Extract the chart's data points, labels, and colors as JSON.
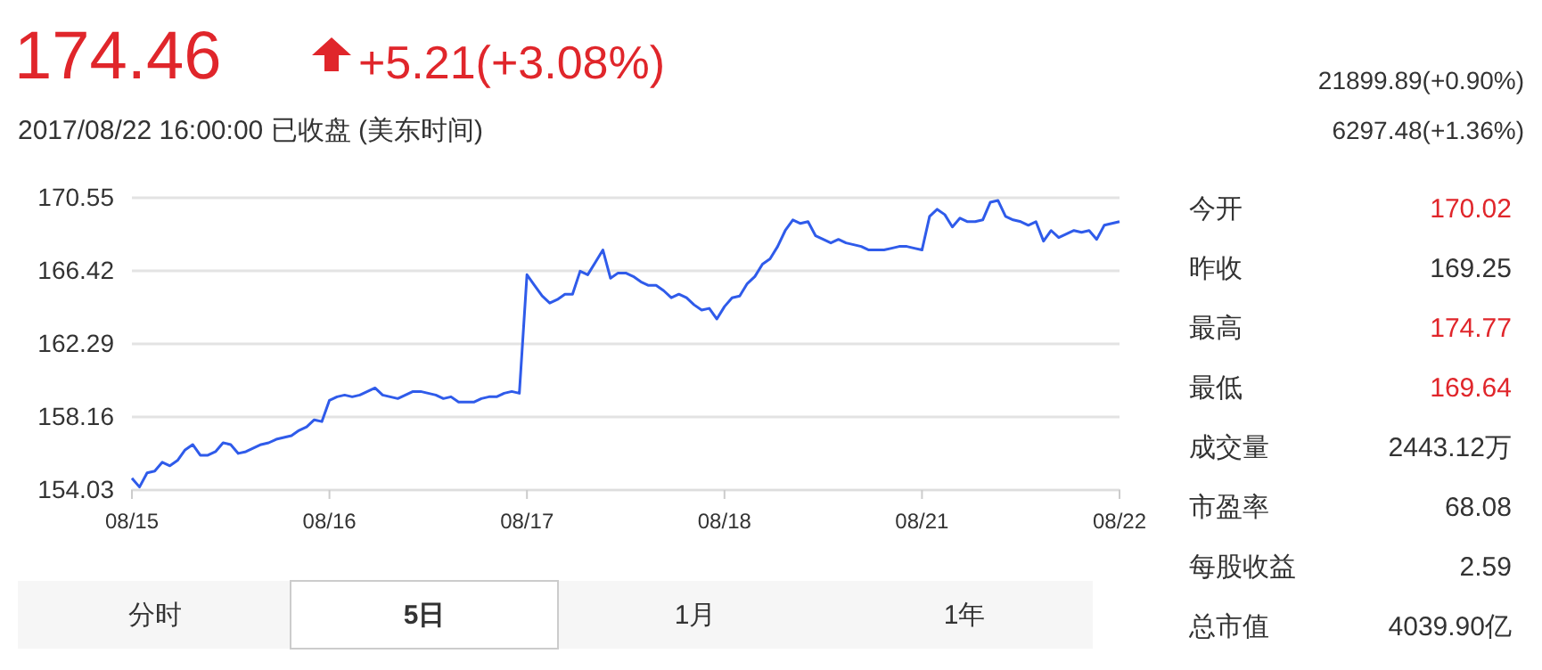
{
  "chart_data": {
    "type": "line",
    "grid": "y",
    "marker": "none",
    "line_style": "solid",
    "categories": [
      "08/15",
      null,
      null,
      null,
      null,
      null,
      null,
      null,
      null,
      null,
      null,
      null,
      null,
      null,
      null,
      null,
      null,
      null,
      null,
      null,
      null,
      null,
      null,
      null,
      null,
      null,
      "08/16",
      null,
      null,
      null,
      null,
      null,
      null,
      null,
      null,
      null,
      null,
      null,
      null,
      null,
      null,
      null,
      null,
      null,
      null,
      null,
      null,
      null,
      null,
      null,
      null,
      null,
      "08/17",
      null,
      null,
      null,
      null,
      null,
      null,
      null,
      null,
      null,
      null,
      null,
      null,
      null,
      null,
      null,
      null,
      null,
      null,
      null,
      null,
      null,
      null,
      null,
      null,
      null,
      "08/18",
      null,
      null,
      null,
      null,
      null,
      null,
      null,
      null,
      null,
      null,
      null,
      null,
      null,
      null,
      null,
      null,
      null,
      null,
      null,
      null,
      null,
      null,
      null,
      null,
      null,
      "08/21",
      null,
      null,
      null,
      null,
      null,
      null,
      null,
      null,
      null,
      null,
      null,
      null,
      null,
      null,
      null,
      null,
      null,
      null,
      null,
      null,
      null,
      null,
      null,
      null,
      null,
      "08/22"
    ],
    "ylim": [
      154.03,
      170.55
    ],
    "yticks": [
      154.03,
      158.16,
      162.29,
      166.42,
      170.55
    ],
    "series": [
      {
        "color": "#2f5bea",
        "values": [
          154.7,
          154.2,
          155.0,
          155.1,
          155.6,
          155.4,
          155.7,
          156.3,
          156.6,
          156.0,
          156.0,
          156.2,
          156.7,
          156.6,
          156.1,
          156.2,
          156.4,
          156.6,
          156.7,
          156.9,
          157.0,
          157.1,
          157.4,
          157.6,
          158.0,
          157.9,
          159.1,
          159.3,
          159.4,
          159.3,
          159.4,
          159.6,
          159.8,
          159.4,
          159.3,
          159.2,
          159.4,
          159.6,
          159.6,
          159.5,
          159.4,
          159.2,
          159.3,
          159.0,
          159.0,
          159.0,
          159.2,
          159.3,
          159.3,
          159.5,
          159.6,
          159.5,
          166.2,
          165.6,
          165.0,
          164.6,
          164.8,
          165.1,
          165.1,
          166.4,
          166.2,
          166.9,
          167.6,
          166.0,
          166.3,
          166.3,
          166.1,
          165.8,
          165.6,
          165.6,
          165.3,
          164.9,
          165.1,
          164.9,
          164.5,
          164.2,
          164.3,
          163.7,
          164.4,
          164.9,
          165.0,
          165.7,
          166.1,
          166.8,
          167.1,
          167.8,
          168.7,
          169.3,
          169.1,
          169.2,
          168.4,
          168.2,
          168.0,
          168.2,
          168.0,
          167.9,
          167.8,
          167.6,
          167.6,
          167.6,
          167.7,
          167.8,
          167.8,
          167.7,
          167.6,
          169.5,
          169.9,
          169.6,
          168.9,
          169.4,
          169.2,
          169.2,
          169.3,
          170.3,
          170.4,
          169.5,
          169.3,
          169.2,
          169.0,
          169.2,
          168.1,
          168.7,
          168.3,
          168.5,
          168.7,
          168.6,
          168.7,
          168.2,
          169.0,
          169.1,
          169.2
        ]
      }
    ],
    "annotations": [
      "174.46",
      "+5.21(+3.08%)",
      "2017/08/22 16:00:00   已收盘 (美东时间)",
      "21899.89(+0.90%)",
      "6297.48(+1.36%)",
      "今开",
      "170.02",
      "昨收",
      "169.25",
      "最高",
      "174.77",
      "最低",
      "169.64",
      "成交量",
      "2443.12万",
      "市盈率",
      "68.08",
      "每股收益",
      "2.59",
      "总市值",
      "4039.90亿",
      "分时",
      "5日",
      "1月",
      "1年"
    ]
  }
}
